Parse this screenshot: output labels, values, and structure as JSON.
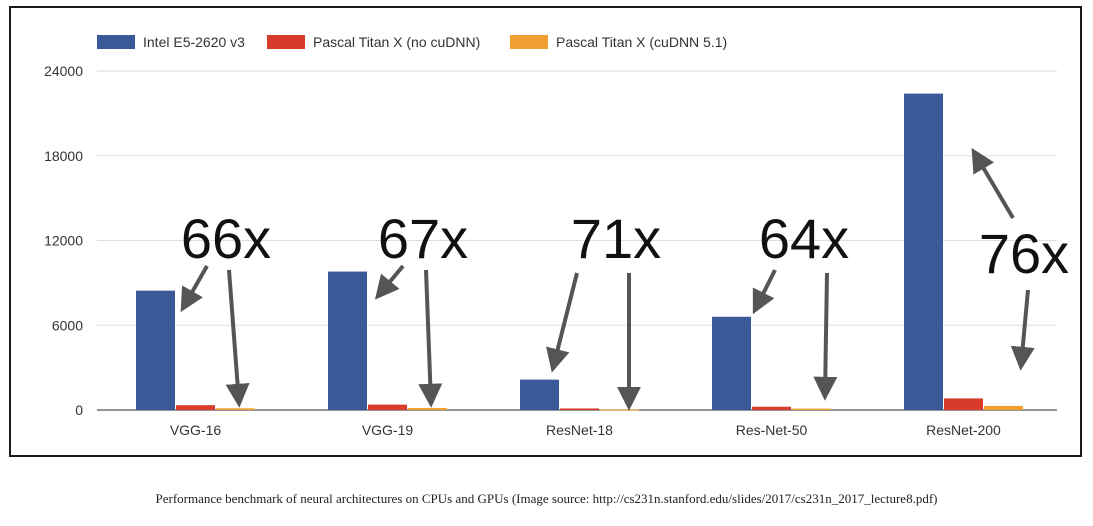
{
  "chart_data": {
    "type": "bar",
    "categories": [
      "VGG-16",
      "VGG-19",
      "ResNet-18",
      "Res-Net-50",
      "ResNet-200"
    ],
    "series": [
      {
        "name": "Intel E5-2620 v3",
        "color": "#3b5998",
        "values": [
          8450,
          9800,
          2150,
          6600,
          22400
        ]
      },
      {
        "name": "Pascal Titan X (no cuDNN)",
        "color": "#d93b2b",
        "values": [
          340,
          380,
          110,
          230,
          820
        ]
      },
      {
        "name": "Pascal Titan X (cuDNN 5.1)",
        "color": "#f0a030",
        "values": [
          120,
          140,
          40,
          100,
          290
        ]
      }
    ],
    "yticks": [
      0,
      6000,
      12000,
      18000,
      24000
    ],
    "ylim": [
      0,
      25000
    ],
    "grid": true,
    "legend_position": "top-left",
    "annotations": [
      {
        "label": "66x",
        "category": "VGG-16"
      },
      {
        "label": "67x",
        "category": "VGG-19"
      },
      {
        "label": "71x",
        "category": "ResNet-18"
      },
      {
        "label": "64x",
        "category": "Res-Net-50"
      },
      {
        "label": "76x",
        "category": "ResNet-200"
      }
    ]
  },
  "caption": "Performance benchmark of neural architectures on CPUs and GPUs (Image source: http://cs231n.stanford.edu/slides/2017/cs231n_2017_lecture8.pdf)"
}
